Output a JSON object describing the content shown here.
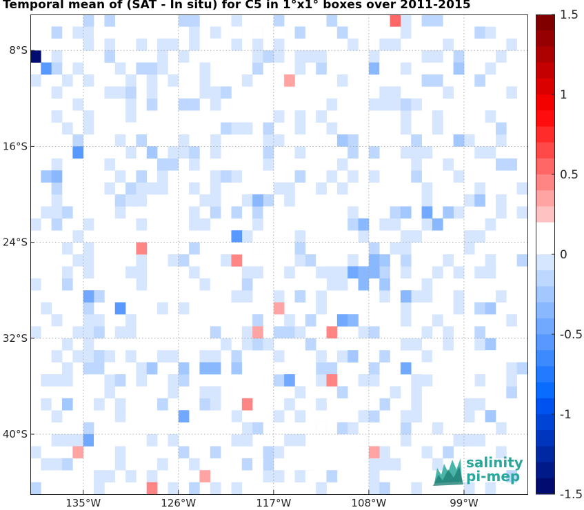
{
  "title": "Temporal mean of (SAT - In situ) for C5 in 1°x1° boxes over 2011-2015",
  "map": {
    "lon_range": [
      -140,
      -93
    ],
    "lat_range": [
      -45,
      -5
    ],
    "lon_ticks": [
      {
        "value": -135,
        "label": "135°W"
      },
      {
        "value": -126,
        "label": "126°W"
      },
      {
        "value": -117,
        "label": "117°W"
      },
      {
        "value": -108,
        "label": "108°W"
      },
      {
        "value": -99,
        "label": "99°W"
      }
    ],
    "lat_ticks": [
      {
        "value": -8,
        "label": "8°S"
      },
      {
        "value": -16,
        "label": "16°S"
      },
      {
        "value": -24,
        "label": "24°S"
      },
      {
        "value": -32,
        "label": "32°S"
      },
      {
        "value": -40,
        "label": "40°S"
      }
    ],
    "grid": "dotted"
  },
  "colorbar": {
    "min": -1.5,
    "max": 1.5,
    "ticks": [
      {
        "value": 1.5,
        "label": "1.5"
      },
      {
        "value": 1,
        "label": "1"
      },
      {
        "value": 0.5,
        "label": "0.5"
      },
      {
        "value": 0,
        "label": "0"
      },
      {
        "value": -0.5,
        "label": "-0.5"
      },
      {
        "value": -1,
        "label": "-1"
      },
      {
        "value": -1.5,
        "label": "-1.5"
      }
    ],
    "colors_top_to_bottom": [
      "#800000",
      "#960000",
      "#ad0000",
      "#c40000",
      "#db0000",
      "#f20000",
      "#ff0d0d",
      "#ff2a2a",
      "#ff4848",
      "#ff6666",
      "#ff8585",
      "#ffa3a3",
      "#ffc2c2",
      "#ffffff",
      "#ffffff",
      "#d6e6ff",
      "#bdd7ff",
      "#a3c8ff",
      "#8ab8ff",
      "#70a9ff",
      "#5799ff",
      "#3d8aff",
      "#247aff",
      "#0a6bff",
      "#0052f0",
      "#0044d6",
      "#0036bd",
      "#0028a3",
      "#001a8a",
      "#000c70"
    ]
  },
  "logo": {
    "line1": "salinity",
    "line2": "pi-mep"
  },
  "chart_data": {
    "type": "heatmap",
    "title": "Temporal mean of (SAT - In situ) for C5 in 1°x1° boxes over 2011-2015",
    "xlabel": "",
    "ylabel": "",
    "x_range_deg": [
      -140,
      -93
    ],
    "y_range_deg": [
      -45,
      -5
    ],
    "colorbar_range": [
      -1.5,
      1.5
    ],
    "cells": [
      {
        "lon": -139.5,
        "lat": -8.5,
        "value": -1.5
      },
      {
        "lon": -138.5,
        "lat": -9.5,
        "value": -0.55
      },
      {
        "lon": -137.5,
        "lat": -9.5,
        "value": -0.15
      },
      {
        "lon": -138.5,
        "lat": -5.5,
        "value": 0.15
      },
      {
        "lon": -134.5,
        "lat": -5.5,
        "value": -0.1
      },
      {
        "lon": -133.5,
        "lat": -6.5,
        "value": 0.15
      },
      {
        "lon": -130.5,
        "lat": -5.5,
        "value": 0.15
      },
      {
        "lon": -128.5,
        "lat": -6.5,
        "value": 0.15
      },
      {
        "lon": -125.5,
        "lat": -5.5,
        "value": -0.1
      },
      {
        "lon": -122.5,
        "lat": -7.5,
        "value": 0.15
      },
      {
        "lon": -120.5,
        "lat": -6.5,
        "value": 0.15
      },
      {
        "lon": -118.5,
        "lat": -6.5,
        "value": 0.15
      },
      {
        "lon": -116.5,
        "lat": -6.5,
        "value": 0.15
      },
      {
        "lon": -115.5,
        "lat": -10.5,
        "value": 0.4
      },
      {
        "lon": -114.5,
        "lat": -6.5,
        "value": -0.1
      },
      {
        "lon": -113.5,
        "lat": -6.5,
        "value": 0.15
      },
      {
        "lon": -112.5,
        "lat": -6.5,
        "value": 0.15
      },
      {
        "lon": -110.5,
        "lat": -6.5,
        "value": -0.1
      },
      {
        "lon": -108.5,
        "lat": -8.5,
        "value": 0.2
      },
      {
        "lon": -107.5,
        "lat": -9.5,
        "value": -0.3
      },
      {
        "lon": -106.5,
        "lat": -9.5,
        "value": 0.15
      },
      {
        "lon": -105.5,
        "lat": -5.5,
        "value": 0.6
      },
      {
        "lon": -102.5,
        "lat": -6.5,
        "value": 0.15
      },
      {
        "lon": -101.5,
        "lat": -6.5,
        "value": 0.15
      },
      {
        "lon": -100.5,
        "lat": -6.5,
        "value": 0.15
      },
      {
        "lon": -99.5,
        "lat": -8.5,
        "value": -0.1
      },
      {
        "lon": -99.5,
        "lat": -9.5,
        "value": -0.2
      },
      {
        "lon": -98.5,
        "lat": -5.5,
        "value": 0.15
      },
      {
        "lon": -96.5,
        "lat": -5.5,
        "value": 0.15
      },
      {
        "lon": -135.5,
        "lat": -16.5,
        "value": -0.5
      },
      {
        "lon": -133.5,
        "lat": -15.5,
        "value": 0.15
      },
      {
        "lon": -131.5,
        "lat": -16.5,
        "value": 0.15
      },
      {
        "lon": -130.5,
        "lat": -14.5,
        "value": 0.15
      },
      {
        "lon": -128.5,
        "lat": -16.5,
        "value": -0.2
      },
      {
        "lon": -127.5,
        "lat": -17.5,
        "value": -0.1
      },
      {
        "lon": -124.5,
        "lat": -16.5,
        "value": -0.1
      },
      {
        "lon": -123.5,
        "lat": -15.5,
        "value": 0.15
      },
      {
        "lon": -138.5,
        "lat": -18.5,
        "value": -0.2
      },
      {
        "lon": -137.5,
        "lat": -18.5,
        "value": -0.3
      },
      {
        "lon": -114.5,
        "lat": -15.5,
        "value": 0.15
      },
      {
        "lon": -112.5,
        "lat": -15.5,
        "value": 0.15
      },
      {
        "lon": -110.5,
        "lat": -15.5,
        "value": -0.2
      },
      {
        "lon": -109.5,
        "lat": -16.5,
        "value": -0.1
      },
      {
        "lon": -103.5,
        "lat": -15.5,
        "value": -0.1
      },
      {
        "lon": -99.5,
        "lat": -12.5,
        "value": 0.15
      },
      {
        "lon": -99.5,
        "lat": -15.5,
        "value": -0.2
      },
      {
        "lon": -117.5,
        "lat": -21.5,
        "value": 0.15
      },
      {
        "lon": -120.5,
        "lat": -23.5,
        "value": -0.5
      },
      {
        "lon": -118.5,
        "lat": -20.5,
        "value": -0.35
      },
      {
        "lon": -108.5,
        "lat": -22.5,
        "value": -0.3
      },
      {
        "lon": -104.5,
        "lat": -21.5,
        "value": -0.2
      },
      {
        "lon": -102.5,
        "lat": -21.5,
        "value": -0.45
      },
      {
        "lon": -101.5,
        "lat": -22.5,
        "value": -0.3
      },
      {
        "lon": -100.5,
        "lat": -21.5,
        "value": -0.2
      },
      {
        "lon": -97.5,
        "lat": -20.5,
        "value": -0.2
      },
      {
        "lon": -129.5,
        "lat": -24.5,
        "value": 0.45
      },
      {
        "lon": -120.5,
        "lat": -25.5,
        "value": 0.45
      },
      {
        "lon": -120.5,
        "lat": -24.5,
        "value": 0.15
      },
      {
        "lon": -118.5,
        "lat": -24.5,
        "value": 0.15
      },
      {
        "lon": -116.5,
        "lat": -25.5,
        "value": 0.15
      },
      {
        "lon": -112.5,
        "lat": -25.5,
        "value": 0.15
      },
      {
        "lon": -109.5,
        "lat": -26.5,
        "value": -0.45
      },
      {
        "lon": -108.5,
        "lat": -26.5,
        "value": -0.3
      },
      {
        "lon": -107.5,
        "lat": -25.5,
        "value": -0.3
      },
      {
        "lon": -108.5,
        "lat": -27.5,
        "value": -0.35
      },
      {
        "lon": -107.5,
        "lat": -26.5,
        "value": -0.3
      },
      {
        "lon": -106.5,
        "lat": -25.5,
        "value": -0.2
      },
      {
        "lon": -106.5,
        "lat": -27.5,
        "value": -0.2
      },
      {
        "lon": -133.5,
        "lat": -28.5,
        "value": -0.1
      },
      {
        "lon": -134.5,
        "lat": -28.5,
        "value": -0.4
      },
      {
        "lon": -130.5,
        "lat": -27.5,
        "value": 0.15
      },
      {
        "lon": -131.5,
        "lat": -29.5,
        "value": -0.5
      },
      {
        "lon": -122.5,
        "lat": -27.5,
        "value": 0.15
      },
      {
        "lon": -121.5,
        "lat": -27.5,
        "value": 0.15
      },
      {
        "lon": -116.5,
        "lat": -29.5,
        "value": 0.35
      },
      {
        "lon": -112.5,
        "lat": -27.5,
        "value": 0.15
      },
      {
        "lon": -110.5,
        "lat": -30.5,
        "value": -0.4
      },
      {
        "lon": -109.5,
        "lat": -30.5,
        "value": -0.3
      },
      {
        "lon": -104.5,
        "lat": -28.5,
        "value": -0.3
      },
      {
        "lon": -101.5,
        "lat": -29.5,
        "value": 0.15
      },
      {
        "lon": -97.5,
        "lat": -29.5,
        "value": -0.1
      },
      {
        "lon": -96.5,
        "lat": -29.5,
        "value": -0.2
      },
      {
        "lon": -137.5,
        "lat": -31.5,
        "value": 0.15
      },
      {
        "lon": -133.5,
        "lat": -31.5,
        "value": -0.1
      },
      {
        "lon": -118.5,
        "lat": -31.5,
        "value": 0.3
      },
      {
        "lon": -111.5,
        "lat": -31.5,
        "value": 0.45
      },
      {
        "lon": -110.5,
        "lat": -32.5,
        "value": 0.15
      },
      {
        "lon": -109.5,
        "lat": -33.5,
        "value": -0.2
      },
      {
        "lon": -108.5,
        "lat": -33.5,
        "value": 0.15
      },
      {
        "lon": -101.5,
        "lat": -33.5,
        "value": 0.15
      },
      {
        "lon": -96.5,
        "lat": -32.5,
        "value": -0.2
      },
      {
        "lon": -132.5,
        "lat": -34.5,
        "value": 0.15
      },
      {
        "lon": -128.5,
        "lat": -34.5,
        "value": -0.2
      },
      {
        "lon": -125.5,
        "lat": -34.5,
        "value": -0.2
      },
      {
        "lon": -123.5,
        "lat": -34.5,
        "value": -0.3
      },
      {
        "lon": -122.5,
        "lat": -34.5,
        "value": -0.3
      },
      {
        "lon": -120.5,
        "lat": -34.5,
        "value": -0.2
      },
      {
        "lon": -119.5,
        "lat": -33.5,
        "value": 0.15
      },
      {
        "lon": -116.5,
        "lat": -34.5,
        "value": 0.2
      },
      {
        "lon": -115.5,
        "lat": -35.5,
        "value": -0.4
      },
      {
        "lon": -111.5,
        "lat": -35.5,
        "value": 0.45
      },
      {
        "lon": -104.5,
        "lat": -34.5,
        "value": -0.45
      },
      {
        "lon": -102.5,
        "lat": -34.5,
        "value": 0.15
      },
      {
        "lon": -96.5,
        "lat": -33.5,
        "value": 0.15
      },
      {
        "lon": -98.5,
        "lat": -35.5,
        "value": 0.15
      },
      {
        "lon": -99.5,
        "lat": -36.5,
        "value": 0.15
      },
      {
        "lon": -137.5,
        "lat": -37.5,
        "value": 0.15
      },
      {
        "lon": -136.5,
        "lat": -37.5,
        "value": -0.2
      },
      {
        "lon": -127.5,
        "lat": -37.5,
        "value": -0.1
      },
      {
        "lon": -125.5,
        "lat": -38.5,
        "value": -0.45
      },
      {
        "lon": -121.5,
        "lat": -38.5,
        "value": 0.15
      },
      {
        "lon": -119.5,
        "lat": -37.5,
        "value": 0.45
      },
      {
        "lon": -118.5,
        "lat": -39.5,
        "value": -0.1
      },
      {
        "lon": -107.5,
        "lat": -37.5,
        "value": 0.15
      },
      {
        "lon": -110.5,
        "lat": -36.5,
        "value": -0.1
      },
      {
        "lon": -138.5,
        "lat": -39.5,
        "value": 0.15
      },
      {
        "lon": -134.5,
        "lat": -40.5,
        "value": -0.4
      },
      {
        "lon": -133.5,
        "lat": -40.5,
        "value": 0.15
      },
      {
        "lon": -132.5,
        "lat": -40.5,
        "value": 0.15
      },
      {
        "lon": -131.5,
        "lat": -39.5,
        "value": 0.15
      },
      {
        "lon": -135.5,
        "lat": -41.5,
        "value": 0.35
      },
      {
        "lon": -122.5,
        "lat": -39.5,
        "value": 0.15
      },
      {
        "lon": -120.5,
        "lat": -39.5,
        "value": 0.15
      },
      {
        "lon": -115.5,
        "lat": -41.5,
        "value": 0.15
      },
      {
        "lon": -114.5,
        "lat": -41.5,
        "value": 0.15
      },
      {
        "lon": -112.5,
        "lat": -39.5,
        "value": 0.15
      },
      {
        "lon": -107.5,
        "lat": -41.5,
        "value": 0.3
      },
      {
        "lon": -108.5,
        "lat": -40.5,
        "value": 0.15
      },
      {
        "lon": -96.5,
        "lat": -38.5,
        "value": -0.2
      },
      {
        "lon": -96.5,
        "lat": -39.5,
        "value": 0.15
      },
      {
        "lon": -128.5,
        "lat": -44.5,
        "value": 0.45
      },
      {
        "lon": -123.5,
        "lat": -43.5,
        "value": 0.3
      },
      {
        "lon": -124.5,
        "lat": -44.5,
        "value": -0.1
      },
      {
        "lon": -118.5,
        "lat": -42.5,
        "value": 0.15
      },
      {
        "lon": -111.5,
        "lat": -43.5,
        "value": -0.1
      },
      {
        "lon": -113.5,
        "lat": -43.5,
        "value": 0.15
      }
    ]
  }
}
